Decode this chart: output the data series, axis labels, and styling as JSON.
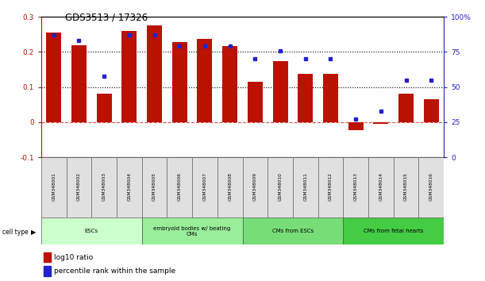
{
  "title": "GDS3513 / 17326",
  "samples": [
    "GSM348001",
    "GSM348002",
    "GSM348003",
    "GSM348004",
    "GSM348005",
    "GSM348006",
    "GSM348007",
    "GSM348008",
    "GSM348009",
    "GSM348010",
    "GSM348011",
    "GSM348012",
    "GSM348013",
    "GSM348014",
    "GSM348015",
    "GSM348016"
  ],
  "log10_ratio": [
    0.255,
    0.22,
    0.082,
    0.26,
    0.275,
    0.228,
    0.238,
    0.218,
    0.115,
    0.175,
    0.138,
    0.138,
    -0.022,
    -0.005,
    0.082,
    0.065
  ],
  "percentile_rank": [
    87,
    83,
    58,
    87,
    87,
    79,
    79,
    79,
    70,
    76,
    70,
    70,
    27,
    33,
    55,
    55
  ],
  "cell_types": [
    {
      "label": "ESCs",
      "start": 0,
      "end": 4,
      "color": "#ccffcc"
    },
    {
      "label": "embryoid bodies w/ beating\nCMs",
      "start": 4,
      "end": 8,
      "color": "#99ee99"
    },
    {
      "label": "CMs from ESCs",
      "start": 8,
      "end": 12,
      "color": "#77dd77"
    },
    {
      "label": "CMs from fetal hearts",
      "start": 12,
      "end": 16,
      "color": "#44cc44"
    }
  ],
  "bar_color": "#bb1100",
  "dot_color": "#2222cc",
  "left_ylim": [
    -0.1,
    0.3
  ],
  "right_ylim": [
    0,
    100
  ],
  "left_yticks": [
    -0.1,
    0.0,
    0.1,
    0.2,
    0.3
  ],
  "right_yticks": [
    0,
    25,
    50,
    75,
    100
  ],
  "right_yticklabels": [
    "0",
    "25",
    "50",
    "75",
    "100%"
  ],
  "hlines": [
    0.1,
    0.2
  ],
  "background_color": "#ffffff"
}
